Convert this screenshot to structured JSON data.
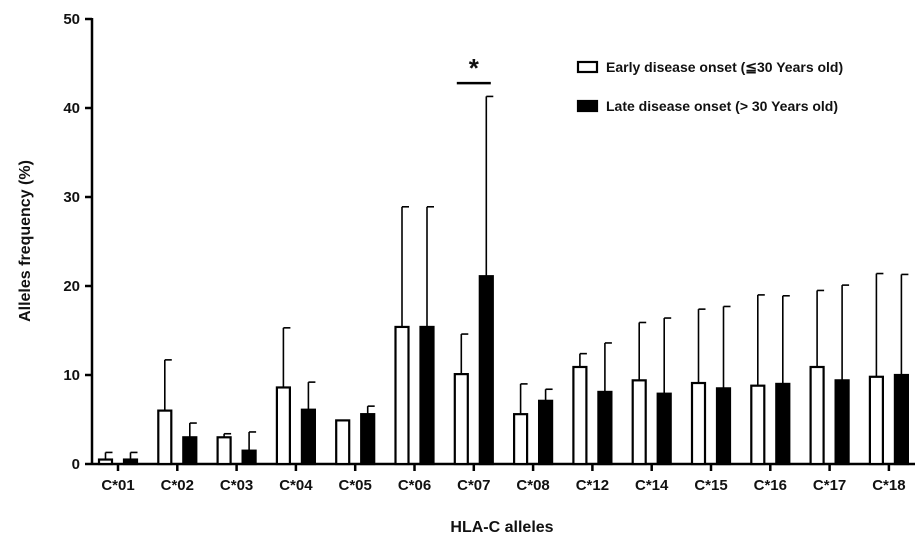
{
  "chart_data": {
    "type": "bar",
    "xlabel": "HLA-C alleles",
    "ylabel": "Alleles frequency (%)",
    "ylim": [
      0,
      50
    ],
    "yticks": [
      0,
      10,
      20,
      30,
      40,
      50
    ],
    "grid": false,
    "legend_position": "top-right",
    "categories": [
      "C*01",
      "C*02",
      "C*03",
      "C*04",
      "C*05",
      "C*06",
      "C*07",
      "C*08",
      "C*12",
      "C*14",
      "C*15",
      "C*16",
      "C*17",
      "C*18"
    ],
    "series": [
      {
        "name": "Early disease onset (≦30 Years old)",
        "style": "hollow",
        "color": "#000000",
        "values": [
          0.5,
          6.0,
          3.0,
          8.6,
          4.9,
          15.4,
          10.1,
          5.6,
          10.9,
          9.4,
          9.1,
          8.8,
          10.9,
          9.8
        ],
        "error": [
          0.8,
          5.7,
          0.4,
          6.7,
          0.0,
          13.5,
          4.5,
          3.4,
          1.5,
          6.5,
          8.3,
          10.2,
          8.6,
          11.6
        ]
      },
      {
        "name": "Late disease onset (> 30 Years old)",
        "style": "filled",
        "color": "#000000",
        "values": [
          0.5,
          3.0,
          1.5,
          6.1,
          5.6,
          15.4,
          21.1,
          7.1,
          8.1,
          7.9,
          8.5,
          9.0,
          9.4,
          10.0
        ],
        "error": [
          0.8,
          1.6,
          2.1,
          3.1,
          0.9,
          13.5,
          20.2,
          1.3,
          5.5,
          8.5,
          9.2,
          9.9,
          10.7,
          11.3
        ]
      }
    ],
    "annotations": [
      {
        "text": "*",
        "category": "C*07",
        "y": 42.8,
        "type": "significance"
      }
    ]
  }
}
